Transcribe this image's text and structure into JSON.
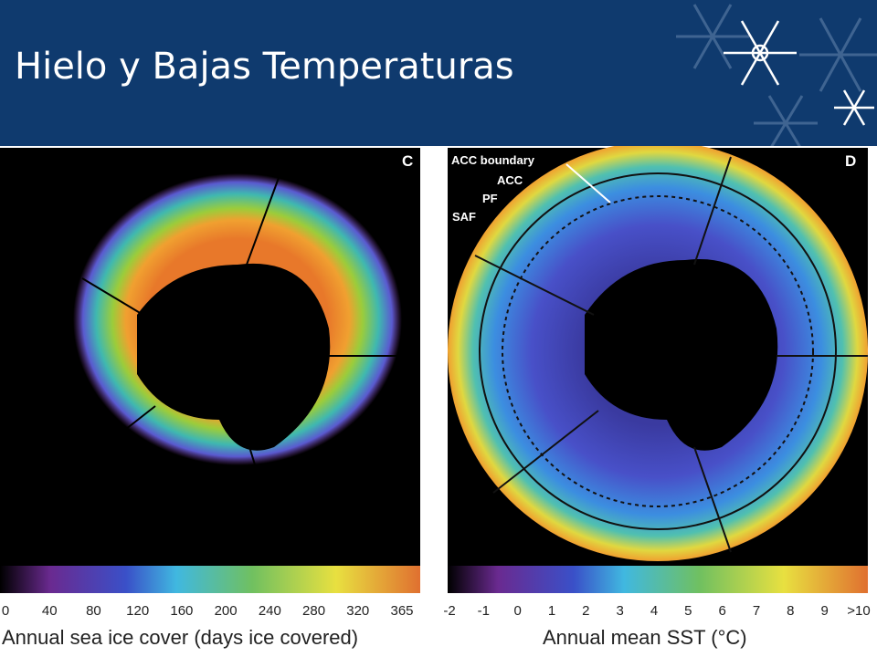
{
  "header": {
    "title": "Hielo y Bajas Temperaturas"
  },
  "panels": [
    {
      "letter": "C",
      "scale_labels": [
        "0",
        "40",
        "80",
        "120",
        "160",
        "200",
        "240",
        "280",
        "320",
        "365"
      ],
      "axis_label": "Annual sea ice cover (days ice covered)"
    },
    {
      "letter": "D",
      "scale_labels": [
        "-2",
        "-1",
        "0",
        "1",
        "2",
        "3",
        "4",
        "5",
        "6",
        "7",
        "8",
        "9",
        ">10"
      ],
      "axis_label": "Annual mean SST (°C)",
      "annotations": [
        "ACC boundary",
        "ACC",
        "PF",
        "SAF"
      ]
    }
  ]
}
